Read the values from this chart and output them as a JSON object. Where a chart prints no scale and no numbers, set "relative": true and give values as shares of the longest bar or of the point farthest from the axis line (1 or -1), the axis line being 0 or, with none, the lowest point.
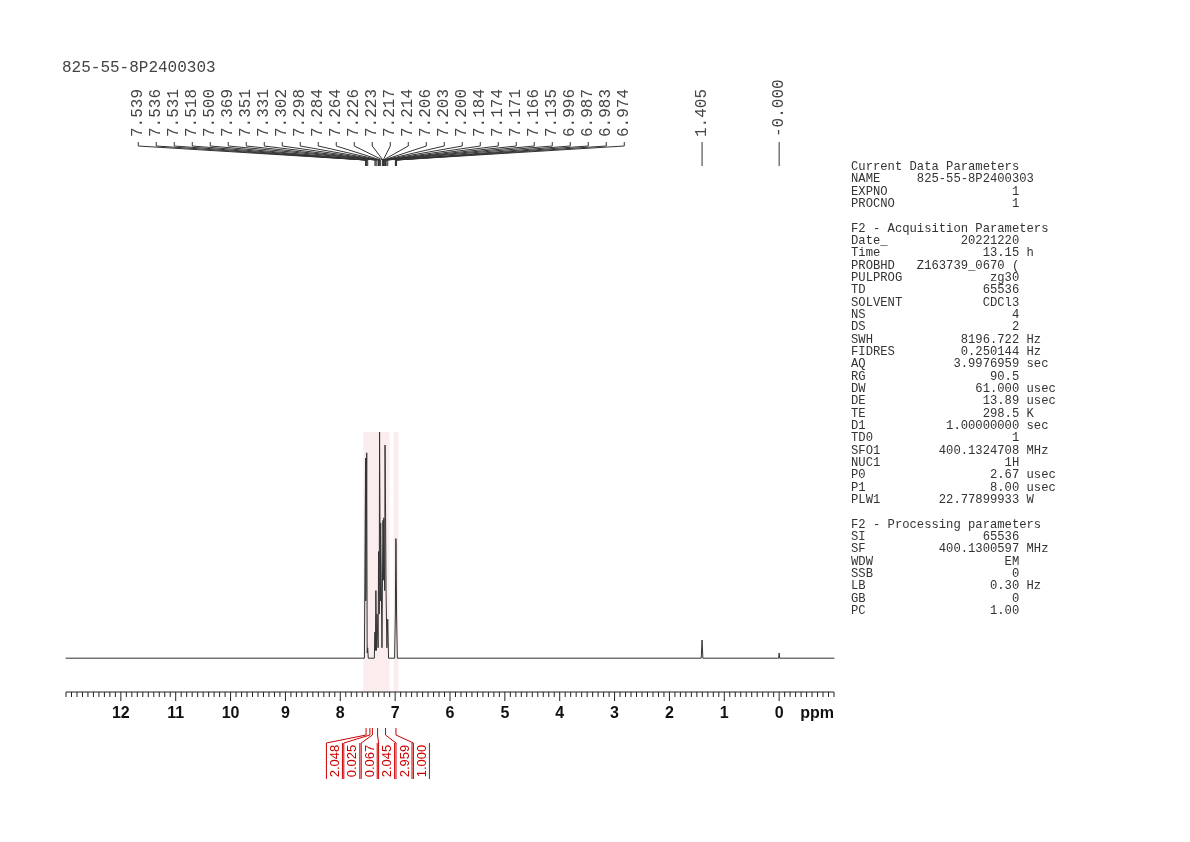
{
  "chart_data": [
    {
      "type": "line",
      "title": "825-55-8P2400303",
      "xlabel": "ppm",
      "relative": true,
      "color": "#333333",
      "xlim": [
        13,
        -1
      ],
      "xticks": [
        {
          "value": 13,
          "label": null
        },
        {
          "value": 12.9,
          "label": null
        },
        {
          "value": 12.8,
          "label": null
        },
        {
          "value": 12.7,
          "label": null
        },
        {
          "value": 12.6,
          "label": null
        },
        {
          "value": 12.5,
          "label": null
        },
        {
          "value": 12.4,
          "label": null
        },
        {
          "value": 12.3,
          "label": null
        },
        {
          "value": 12.2,
          "label": null
        },
        {
          "value": 12.1,
          "label": null
        },
        12,
        {
          "value": 11.9,
          "label": null
        },
        {
          "value": 11.8,
          "label": null
        },
        {
          "value": 11.7,
          "label": null
        },
        {
          "value": 11.6,
          "label": null
        },
        {
          "value": 11.5,
          "label": null
        },
        {
          "value": 11.4,
          "label": null
        },
        {
          "value": 11.3,
          "label": null
        },
        {
          "value": 11.2,
          "label": null
        },
        {
          "value": 11.1,
          "label": null
        },
        11,
        {
          "value": 10.9,
          "label": null
        },
        {
          "value": 10.8,
          "label": null
        },
        {
          "value": 10.7,
          "label": null
        },
        {
          "value": 10.6,
          "label": null
        },
        {
          "value": 10.5,
          "label": null
        },
        {
          "value": 10.4,
          "label": null
        },
        {
          "value": 10.3,
          "label": null
        },
        {
          "value": 10.2,
          "label": null
        },
        {
          "value": 10.1,
          "label": null
        },
        10,
        {
          "value": 9.9,
          "label": null
        },
        {
          "value": 9.8,
          "label": null
        },
        {
          "value": 9.7,
          "label": null
        },
        {
          "value": 9.6,
          "label": null
        },
        {
          "value": 9.5,
          "label": null
        },
        {
          "value": 9.4,
          "label": null
        },
        {
          "value": 9.3,
          "label": null
        },
        {
          "value": 9.2,
          "label": null
        },
        {
          "value": 9.1,
          "label": null
        },
        9,
        {
          "value": 8.9,
          "label": null
        },
        {
          "value": 8.8,
          "label": null
        },
        {
          "value": 8.7,
          "label": null
        },
        {
          "value": 8.6,
          "label": null
        },
        {
          "value": 8.5,
          "label": null
        },
        {
          "value": 8.4,
          "label": null
        },
        {
          "value": 8.3,
          "label": null
        },
        {
          "value": 8.2,
          "label": null
        },
        {
          "value": 8.1,
          "label": null
        },
        8,
        {
          "value": 7.9,
          "label": null
        },
        {
          "value": 7.8,
          "label": null
        },
        {
          "value": 7.7,
          "label": null
        },
        {
          "value": 7.6,
          "label": null
        },
        {
          "value": 7.5,
          "label": null
        },
        {
          "value": 7.4,
          "label": null
        },
        {
          "value": 7.3,
          "label": null
        },
        {
          "value": 7.2,
          "label": null
        },
        {
          "value": 7.1,
          "label": null
        },
        7,
        {
          "value": 6.9,
          "label": null
        },
        {
          "value": 6.8,
          "label": null
        },
        {
          "value": 6.7,
          "label": null
        },
        {
          "value": 6.6,
          "label": null
        },
        {
          "value": 6.5,
          "label": null
        },
        {
          "value": 6.4,
          "label": null
        },
        {
          "value": 6.3,
          "label": null
        },
        {
          "value": 6.2,
          "label": null
        },
        {
          "value": 6.1,
          "label": null
        },
        6,
        {
          "value": 5.9,
          "label": null
        },
        {
          "value": 5.8,
          "label": null
        },
        {
          "value": 5.7,
          "label": null
        },
        {
          "value": 5.6,
          "label": null
        },
        {
          "value": 5.5,
          "label": null
        },
        {
          "value": 5.4,
          "label": null
        },
        {
          "value": 5.3,
          "label": null
        },
        {
          "value": 5.2,
          "label": null
        },
        {
          "value": 5.1,
          "label": null
        },
        5,
        {
          "value": 4.9,
          "label": null
        },
        {
          "value": 4.8,
          "label": null
        },
        {
          "value": 4.7,
          "label": null
        },
        {
          "value": 4.6,
          "label": null
        },
        {
          "value": 4.5,
          "label": null
        },
        {
          "value": 4.4,
          "label": null
        },
        {
          "value": 4.3,
          "label": null
        },
        {
          "value": 4.2,
          "label": null
        },
        {
          "value": 4.1,
          "label": null
        },
        4,
        {
          "value": 3.9,
          "label": null
        },
        {
          "value": 3.8,
          "label": null
        },
        {
          "value": 3.7,
          "label": null
        },
        {
          "value": 3.6,
          "label": null
        },
        {
          "value": 3.5,
          "label": null
        },
        {
          "value": 3.4,
          "label": null
        },
        {
          "value": 3.3,
          "label": null
        },
        {
          "value": 3.2,
          "label": null
        },
        {
          "value": 3.1,
          "label": null
        },
        3,
        {
          "value": 2.9,
          "label": null
        },
        {
          "value": 2.8,
          "label": null
        },
        {
          "value": 2.7,
          "label": null
        },
        {
          "value": 2.6,
          "label": null
        },
        {
          "value": 2.5,
          "label": null
        },
        {
          "value": 2.4,
          "label": null
        },
        {
          "value": 2.3,
          "label": null
        },
        {
          "value": 2.2,
          "label": null
        },
        {
          "value": 2.1,
          "label": null
        },
        2,
        {
          "value": 1.9,
          "label": null
        },
        {
          "value": 1.8,
          "label": null
        },
        {
          "value": 1.7,
          "label": null
        },
        {
          "value": 1.6,
          "label": null
        },
        {
          "value": 1.5,
          "label": null
        },
        {
          "value": 1.4,
          "label": null
        },
        {
          "value": 1.3,
          "label": null
        },
        {
          "value": 1.2,
          "label": null
        },
        {
          "value": 1.1,
          "label": null
        },
        1,
        {
          "value": 0.9,
          "label": null
        },
        {
          "value": 0.8,
          "label": null
        },
        {
          "value": 0.7,
          "label": null
        },
        {
          "value": 0.6,
          "label": null
        },
        {
          "value": 0.5,
          "label": null
        },
        {
          "value": 0.4,
          "label": null
        },
        {
          "value": 0.3,
          "label": null
        },
        {
          "value": 0.2,
          "label": null
        },
        {
          "value": 0.1,
          "label": null
        },
        0,
        {
          "value": -0.1,
          "label": null
        },
        {
          "value": -0.2,
          "label": null
        },
        {
          "value": -0.3,
          "label": null
        },
        {
          "value": -0.4,
          "label": null
        },
        {
          "value": -0.5,
          "label": null
        },
        {
          "value": -0.6,
          "label": null
        },
        {
          "value": -0.7,
          "label": null
        },
        {
          "value": -0.8,
          "label": null
        },
        {
          "value": -0.9,
          "label": null
        },
        {
          "value": -1,
          "label": null
        }
      ],
      "x": [
        13,
        7.56,
        7.539,
        7.536,
        7.531,
        7.518,
        7.51,
        7.5,
        7.49,
        7.38,
        7.369,
        7.36,
        7.351,
        7.34,
        7.331,
        7.31,
        7.302,
        7.298,
        7.29,
        7.284,
        7.27,
        7.264,
        7.24,
        7.226,
        7.223,
        7.217,
        7.214,
        7.21,
        7.206,
        7.203,
        7.2,
        7.19,
        7.184,
        7.174,
        7.171,
        7.166,
        7.15,
        7.135,
        7.12,
        7.01,
        6.996,
        6.987,
        6.983,
        6.974,
        6.96,
        1.42,
        1.405,
        1.39,
        0.01,
        0,
        -0.01,
        -1
      ],
      "values": [
        0.13,
        0.13,
        0.9,
        0.35,
        0.39,
        0.92,
        0.15,
        0.17,
        0.13,
        0.13,
        0.23,
        0.16,
        0.39,
        0.16,
        0.3,
        0.17,
        0.54,
        0.5,
        0.3,
        1,
        0.35,
        0.65,
        0.17,
        0.57,
        0.66,
        0.61,
        0.57,
        0.43,
        0.67,
        0.57,
        0.52,
        0.39,
        0.95,
        0.67,
        0.57,
        0.39,
        0.17,
        0.28,
        0.13,
        0.13,
        0.3,
        0.59,
        0.57,
        0.3,
        0.13,
        0.13,
        0.2,
        0.13,
        0.13,
        0.15,
        0.13,
        0.13
      ],
      "annotations": [
        {
          "text": "7.539",
          "x": 7.539
        },
        {
          "text": "7.536",
          "x": 7.536
        },
        {
          "text": "7.531",
          "x": 7.531
        },
        {
          "text": "7.518",
          "x": 7.518
        },
        {
          "text": "7.500",
          "x": 7.5
        },
        {
          "text": "7.369",
          "x": 7.369
        },
        {
          "text": "7.351",
          "x": 7.351
        },
        {
          "text": "7.331",
          "x": 7.331
        },
        {
          "text": "7.302",
          "x": 7.302
        },
        {
          "text": "7.298",
          "x": 7.298
        },
        {
          "text": "7.284",
          "x": 7.284
        },
        {
          "text": "7.264",
          "x": 7.264
        },
        {
          "text": "7.226",
          "x": 7.226
        },
        {
          "text": "7.223",
          "x": 7.223
        },
        {
          "text": "7.217",
          "x": 7.217
        },
        {
          "text": "7.214",
          "x": 7.214
        },
        {
          "text": "7.206",
          "x": 7.206
        },
        {
          "text": "7.203",
          "x": 7.203
        },
        {
          "text": "7.200",
          "x": 7.2
        },
        {
          "text": "7.184",
          "x": 7.184
        },
        {
          "text": "7.174",
          "x": 7.174
        },
        {
          "text": "7.171",
          "x": 7.171
        },
        {
          "text": "7.166",
          "x": 7.166
        },
        {
          "text": "7.135",
          "x": 7.135
        },
        {
          "text": "6.996",
          "x": 6.996
        },
        {
          "text": "6.987",
          "x": 6.987
        },
        {
          "text": "6.983",
          "x": 6.983
        },
        {
          "text": "6.974",
          "x": 6.974
        },
        {
          "text": "1.405",
          "x": 1.405
        },
        {
          "text": "-0.000",
          "x": 0
        }
      ],
      "bands": [
        {
          "axis": "x",
          "from": 7.58,
          "to": 7.48,
          "label": "2.048",
          "color": "#cc0000"
        },
        {
          "axis": "x",
          "from": 7.48,
          "to": 7.44,
          "label": "0.025",
          "color": "#cc0000"
        },
        {
          "axis": "x",
          "from": 7.44,
          "to": 7.39,
          "label": "0.067",
          "color": "#cc0000"
        },
        {
          "axis": "x",
          "from": 7.39,
          "to": 7.25,
          "label": "2.045",
          "color": "#cc0000"
        },
        {
          "axis": "x",
          "from": 7.25,
          "to": 7.1,
          "label": "2.959",
          "color": "#cc0000"
        },
        {
          "axis": "x",
          "from": 7.03,
          "to": 6.94,
          "label": "1.000",
          "color": "#cc0000"
        }
      ]
    },
    {
      "type": "other",
      "title": "Current Data Parameters",
      "annotations": [
        "NAME 825-55-8P2400303",
        "EXPNO 1",
        "PROCNO 1"
      ]
    },
    {
      "type": "other",
      "title": "F2 - Acquisition Parameters",
      "annotations": [
        "Date_ 20221220",
        "Time 13.15 h",
        "PROBHD Z163739_0670 (",
        "PULPROG zg30",
        "TD 65536",
        "SOLVENT CDCl3",
        "NS 4",
        "DS 2",
        "SWH 8196.722 Hz",
        "FIDRES 0.250144 Hz",
        "AQ 3.9976959 sec",
        "RG 90.5",
        "DW 61.000 usec",
        "DE 13.89 usec",
        "TE 298.5 K",
        "D1 1.00000000 sec",
        "TD0 1",
        "SFO1 400.1324708 MHz",
        "NUC1 1H",
        "P0 2.67 usec",
        "P1 8.00 usec",
        "PLW1 22.77899933 W"
      ]
    },
    {
      "type": "other",
      "title": "F2 - Processing parameters",
      "annotations": [
        "SI 65536",
        "SF 400.1300597 MHz",
        "WDW EM",
        "SSB 0",
        "LB 0.30 Hz",
        "GB 0",
        "PC 1.00"
      ]
    }
  ]
}
